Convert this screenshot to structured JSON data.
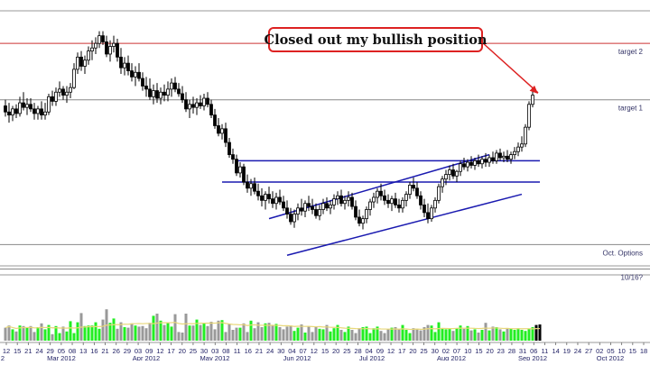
{
  "chart_data": {
    "type": "candlestick",
    "title": "",
    "price_range": [
      -1.2,
      15.0
    ],
    "volume_range": [
      0,
      100
    ],
    "grid": "none",
    "dates": [
      "2012-02-13",
      "2012-02-14",
      "2012-02-15",
      "2012-02-16",
      "2012-02-17",
      "2012-02-20",
      "2012-02-21",
      "2012-02-22",
      "2012-02-23",
      "2012-02-24",
      "2012-02-27",
      "2012-02-28",
      "2012-02-29",
      "2012-03-01",
      "2012-03-02",
      "2012-03-05",
      "2012-03-06",
      "2012-03-07",
      "2012-03-08",
      "2012-03-09",
      "2012-03-12",
      "2012-03-13",
      "2012-03-14",
      "2012-03-15",
      "2012-03-16",
      "2012-03-19",
      "2012-03-20",
      "2012-03-21",
      "2012-03-22",
      "2012-03-23",
      "2012-03-26",
      "2012-03-27",
      "2012-03-28",
      "2012-03-29",
      "2012-03-30",
      "2012-04-02",
      "2012-04-03",
      "2012-04-04",
      "2012-04-05",
      "2012-04-06",
      "2012-04-09",
      "2012-04-10",
      "2012-04-11",
      "2012-04-12",
      "2012-04-13",
      "2012-04-16",
      "2012-04-17",
      "2012-04-18",
      "2012-04-19",
      "2012-04-20",
      "2012-04-23",
      "2012-04-24",
      "2012-04-25",
      "2012-04-26",
      "2012-04-27",
      "2012-04-30",
      "2012-05-01",
      "2012-05-02",
      "2012-05-03",
      "2012-05-04",
      "2012-05-07",
      "2012-05-08",
      "2012-05-09",
      "2012-05-10",
      "2012-05-11",
      "2012-05-14",
      "2012-05-15",
      "2012-05-16",
      "2012-05-17",
      "2012-05-18",
      "2012-05-21",
      "2012-05-22",
      "2012-05-23",
      "2012-05-24",
      "2012-05-25",
      "2012-05-28",
      "2012-05-29",
      "2012-05-30",
      "2012-05-31",
      "2012-06-01",
      "2012-06-04",
      "2012-06-05",
      "2012-06-06",
      "2012-06-07",
      "2012-06-08",
      "2012-06-11",
      "2012-06-12",
      "2012-06-13",
      "2012-06-14",
      "2012-06-15",
      "2012-06-18",
      "2012-06-19",
      "2012-06-20",
      "2012-06-21",
      "2012-06-22",
      "2012-06-25",
      "2012-06-26",
      "2012-06-27",
      "2012-06-28",
      "2012-06-29",
      "2012-07-02",
      "2012-07-03",
      "2012-07-04",
      "2012-07-05",
      "2012-07-06",
      "2012-07-09",
      "2012-07-10",
      "2012-07-11",
      "2012-07-12",
      "2012-07-13",
      "2012-07-16",
      "2012-07-17",
      "2012-07-18",
      "2012-07-19",
      "2012-07-20",
      "2012-07-23",
      "2012-07-24",
      "2012-07-25",
      "2012-07-26",
      "2012-07-27",
      "2012-07-30",
      "2012-07-31",
      "2012-08-01",
      "2012-08-02",
      "2012-08-03",
      "2012-08-06",
      "2012-08-07",
      "2012-08-08",
      "2012-08-09",
      "2012-08-10",
      "2012-08-13",
      "2012-08-14",
      "2012-08-15",
      "2012-08-16",
      "2012-08-17",
      "2012-08-20",
      "2012-08-21",
      "2012-08-22",
      "2012-08-23",
      "2012-08-24",
      "2012-08-27",
      "2012-08-28",
      "2012-08-29",
      "2012-08-30",
      "2012-08-31",
      "2012-09-03",
      "2012-09-04",
      "2012-09-05",
      "2012-09-06"
    ],
    "ohlc": [
      [
        9.0,
        9.4,
        8.3,
        8.6
      ],
      [
        8.6,
        9.2,
        7.9,
        8.4
      ],
      [
        8.4,
        9.0,
        8.0,
        8.8
      ],
      [
        8.8,
        9.1,
        8.2,
        8.5
      ],
      [
        8.5,
        9.6,
        8.3,
        9.2
      ],
      [
        9.2,
        9.9,
        8.7,
        8.9
      ],
      [
        8.9,
        9.5,
        8.4,
        9.1
      ],
      [
        9.1,
        9.5,
        8.6,
        8.8
      ],
      [
        8.8,
        9.2,
        8.1,
        8.5
      ],
      [
        8.5,
        9.0,
        8.1,
        8.8
      ],
      [
        8.8,
        9.3,
        8.1,
        8.4
      ],
      [
        8.4,
        9.2,
        8.1,
        8.6
      ],
      [
        8.6,
        9.8,
        8.4,
        9.6
      ],
      [
        9.6,
        10.0,
        9.0,
        9.3
      ],
      [
        9.3,
        10.2,
        9.0,
        9.9
      ],
      [
        9.9,
        10.6,
        9.6,
        10.1
      ],
      [
        10.1,
        10.3,
        9.4,
        9.7
      ],
      [
        9.7,
        10.3,
        9.2,
        9.9
      ],
      [
        9.9,
        10.5,
        9.5,
        10.2
      ],
      [
        10.2,
        11.8,
        10.1,
        11.4
      ],
      [
        11.4,
        12.5,
        11.1,
        12.2
      ],
      [
        12.2,
        12.6,
        11.3,
        11.6
      ],
      [
        11.6,
        12.3,
        11.1,
        12.0
      ],
      [
        12.0,
        12.9,
        11.7,
        12.6
      ],
      [
        12.6,
        13.3,
        12.0,
        12.8
      ],
      [
        12.8,
        13.5,
        12.4,
        13.1
      ],
      [
        13.1,
        13.9,
        12.8,
        13.6
      ],
      [
        13.6,
        13.9,
        13.0,
        13.2
      ],
      [
        13.2,
        13.6,
        12.2,
        12.4
      ],
      [
        12.4,
        13.3,
        11.9,
        12.9
      ],
      [
        12.9,
        13.6,
        12.5,
        13.1
      ],
      [
        13.1,
        13.4,
        11.9,
        12.2
      ],
      [
        12.2,
        12.8,
        11.1,
        11.5
      ],
      [
        11.5,
        12.2,
        11.0,
        11.8
      ],
      [
        11.8,
        12.3,
        11.0,
        11.3
      ],
      [
        11.3,
        11.8,
        10.6,
        10.9
      ],
      [
        10.9,
        11.6,
        10.3,
        11.2
      ],
      [
        11.2,
        11.8,
        10.6,
        10.8
      ],
      [
        10.8,
        11.2,
        10.0,
        10.3
      ],
      [
        10.3,
        10.9,
        9.6,
        10.1
      ],
      [
        10.1,
        10.8,
        9.4,
        9.6
      ],
      [
        9.6,
        10.4,
        9.1,
        10.0
      ],
      [
        10.0,
        10.5,
        9.2,
        9.5
      ],
      [
        9.5,
        10.2,
        9.1,
        9.9
      ],
      [
        9.9,
        10.4,
        9.3,
        9.7
      ],
      [
        9.7,
        10.6,
        9.3,
        10.1
      ],
      [
        10.1,
        10.8,
        9.6,
        10.5
      ],
      [
        10.5,
        10.9,
        9.9,
        10.1
      ],
      [
        10.1,
        10.5,
        9.6,
        9.8
      ],
      [
        9.8,
        10.3,
        9.2,
        9.4
      ],
      [
        9.4,
        9.9,
        8.6,
        8.8
      ],
      [
        8.8,
        9.4,
        8.2,
        9.1
      ],
      [
        9.1,
        9.6,
        8.5,
        8.9
      ],
      [
        8.9,
        9.5,
        8.4,
        9.2
      ],
      [
        9.2,
        9.7,
        8.8,
        9.0
      ],
      [
        9.0,
        9.8,
        8.7,
        9.5
      ],
      [
        9.5,
        9.9,
        8.9,
        9.1
      ],
      [
        9.1,
        9.4,
        8.2,
        8.4
      ],
      [
        8.4,
        8.8,
        7.5,
        7.7
      ],
      [
        7.7,
        8.2,
        7.0,
        7.2
      ],
      [
        7.2,
        7.8,
        6.8,
        7.5
      ],
      [
        7.5,
        7.9,
        6.3,
        6.6
      ],
      [
        6.6,
        6.9,
        5.6,
        5.8
      ],
      [
        5.8,
        6.2,
        5.2,
        5.5
      ],
      [
        5.5,
        5.8,
        4.4,
        4.6
      ],
      [
        4.6,
        5.3,
        4.3,
        5.0
      ],
      [
        5.0,
        5.2,
        3.8,
        4.0
      ],
      [
        4.0,
        4.5,
        3.3,
        3.6
      ],
      [
        3.6,
        4.2,
        3.1,
        3.9
      ],
      [
        3.9,
        4.3,
        3.2,
        3.4
      ],
      [
        3.4,
        3.9,
        2.8,
        3.1
      ],
      [
        3.1,
        3.6,
        2.4,
        2.8
      ],
      [
        2.8,
        3.4,
        2.2,
        3.2
      ],
      [
        3.2,
        3.7,
        2.6,
        2.9
      ],
      [
        2.9,
        3.4,
        2.3,
        2.6
      ],
      [
        2.6,
        3.3,
        2.2,
        3.0
      ],
      [
        3.0,
        3.5,
        2.5,
        2.7
      ],
      [
        2.7,
        3.1,
        2.1,
        2.3
      ],
      [
        2.3,
        2.8,
        1.6,
        1.9
      ],
      [
        1.9,
        2.3,
        1.2,
        1.4
      ],
      [
        1.4,
        2.2,
        1.0,
        1.9
      ],
      [
        1.9,
        2.6,
        1.5,
        2.3
      ],
      [
        2.3,
        2.9,
        1.8,
        2.1
      ],
      [
        2.1,
        2.8,
        1.7,
        2.6
      ],
      [
        2.6,
        3.1,
        2.1,
        2.4
      ],
      [
        2.4,
        2.9,
        1.9,
        2.2
      ],
      [
        2.2,
        2.6,
        1.6,
        1.8
      ],
      [
        1.8,
        2.5,
        1.5,
        2.2
      ],
      [
        2.2,
        2.9,
        1.9,
        2.6
      ],
      [
        2.6,
        3.0,
        2.1,
        2.3
      ],
      [
        2.3,
        2.8,
        1.9,
        2.5
      ],
      [
        2.5,
        3.2,
        2.2,
        2.9
      ],
      [
        2.9,
        3.4,
        2.5,
        3.1
      ],
      [
        3.1,
        3.5,
        2.4,
        2.6
      ],
      [
        2.6,
        3.1,
        2.2,
        2.8
      ],
      [
        2.8,
        3.4,
        2.4,
        3.0
      ],
      [
        3.0,
        3.3,
        2.2,
        2.4
      ],
      [
        2.4,
        2.8,
        1.5,
        1.7
      ],
      [
        1.7,
        2.2,
        1.1,
        1.3
      ],
      [
        1.3,
        1.8,
        0.9,
        1.6
      ],
      [
        1.6,
        2.4,
        1.3,
        2.2
      ],
      [
        2.2,
        2.9,
        1.8,
        2.7
      ],
      [
        2.7,
        3.3,
        2.3,
        3.0
      ],
      [
        3.0,
        3.6,
        2.6,
        3.4
      ],
      [
        3.4,
        3.9,
        2.8,
        3.1
      ],
      [
        3.1,
        3.5,
        2.5,
        2.8
      ],
      [
        2.8,
        3.2,
        2.3,
        2.6
      ],
      [
        2.6,
        3.1,
        2.1,
        2.9
      ],
      [
        2.9,
        3.3,
        2.3,
        2.5
      ],
      [
        2.5,
        2.9,
        2.0,
        2.3
      ],
      [
        2.3,
        3.0,
        2.0,
        2.8
      ],
      [
        2.8,
        3.4,
        2.4,
        3.2
      ],
      [
        3.2,
        4.0,
        2.9,
        3.8
      ],
      [
        3.8,
        4.3,
        3.4,
        3.6
      ],
      [
        3.6,
        4.0,
        2.9,
        3.1
      ],
      [
        3.1,
        3.4,
        2.2,
        2.5
      ],
      [
        2.5,
        2.9,
        1.7,
        2.0
      ],
      [
        2.0,
        2.6,
        1.3,
        1.6
      ],
      [
        1.6,
        2.5,
        1.4,
        2.3
      ],
      [
        2.3,
        3.0,
        2.0,
        2.8
      ],
      [
        2.8,
        3.9,
        2.6,
        3.7
      ],
      [
        3.7,
        4.4,
        3.3,
        4.2
      ],
      [
        4.2,
        4.8,
        3.8,
        4.5
      ],
      [
        4.5,
        5.1,
        4.1,
        4.8
      ],
      [
        4.8,
        5.2,
        4.2,
        4.4
      ],
      [
        4.4,
        4.8,
        4.0,
        4.7
      ],
      [
        4.7,
        5.4,
        4.4,
        5.2
      ],
      [
        5.2,
        5.6,
        4.8,
        5.0
      ],
      [
        5.0,
        5.5,
        4.7,
        5.3
      ],
      [
        5.3,
        5.7,
        4.9,
        5.1
      ],
      [
        5.1,
        5.6,
        4.8,
        5.4
      ],
      [
        5.4,
        5.8,
        5.0,
        5.2
      ],
      [
        5.2,
        5.7,
        4.9,
        5.5
      ],
      [
        5.5,
        5.9,
        5.0,
        5.3
      ],
      [
        5.3,
        5.8,
        5.0,
        5.6
      ],
      [
        5.6,
        6.0,
        5.2,
        5.4
      ],
      [
        5.4,
        6.1,
        5.2,
        5.9
      ],
      [
        5.9,
        6.2,
        5.4,
        5.6
      ],
      [
        5.6,
        6.0,
        5.3,
        5.7
      ],
      [
        5.7,
        6.1,
        5.3,
        5.5
      ],
      [
        5.5,
        6.0,
        5.2,
        5.8
      ],
      [
        5.8,
        6.3,
        5.5,
        6.0
      ],
      [
        6.0,
        6.6,
        5.7,
        6.3
      ],
      [
        6.3,
        7.0,
        6.0,
        6.5
      ],
      [
        6.5,
        7.8,
        6.3,
        7.6
      ],
      [
        7.6,
        9.3,
        7.4,
        9.1
      ],
      [
        9.1,
        10.0,
        8.9,
        9.7
      ]
    ],
    "volume": [
      24,
      28,
      21,
      17,
      28,
      27,
      25,
      27,
      16,
      25,
      32,
      21,
      29,
      12,
      27,
      14,
      26,
      17,
      36,
      14,
      34,
      51,
      27,
      28,
      28,
      34,
      22,
      39,
      58,
      33,
      41,
      22,
      34,
      25,
      24,
      32,
      28,
      26,
      27,
      23,
      33,
      46,
      50,
      37,
      29,
      34,
      26,
      49,
      16,
      15,
      50,
      28,
      28,
      39,
      29,
      33,
      27,
      35,
      21,
      37,
      38,
      16,
      31,
      20,
      24,
      24,
      32,
      16,
      37,
      23,
      34,
      25,
      32,
      33,
      29,
      31,
      25,
      21,
      26,
      28,
      18,
      24,
      30,
      15,
      26,
      16,
      26,
      22,
      21,
      29,
      17,
      23,
      29,
      20,
      16,
      26,
      20,
      14,
      23,
      25,
      26,
      14,
      23,
      26,
      18,
      14,
      21,
      24,
      25,
      21,
      29,
      20,
      14,
      23,
      22,
      19,
      25,
      29,
      28,
      16,
      34,
      22,
      21,
      22,
      18,
      23,
      28,
      22,
      27,
      19,
      21,
      15,
      20,
      33,
      19,
      26,
      25,
      21,
      17,
      23,
      22,
      20,
      23,
      20,
      18,
      22,
      25,
      29,
      30
    ],
    "volume_up_color": "#22ee22",
    "volume_down_color": "#999999",
    "volume_avg_color": "#e8d87a",
    "horizontal_levels": [
      {
        "label": "target 2",
        "value": 13.1,
        "color": "#cc3333"
      },
      {
        "label": "target 1",
        "value": 9.4,
        "color": "#888888"
      },
      {
        "label": "Oct. Options",
        "value": -0.1,
        "color": "#888888"
      },
      {
        "label": "10/16?",
        "value": -1.7,
        "color": "#888888"
      }
    ],
    "support_lines": [
      {
        "from": [
          "2012-05-11",
          5.4
        ],
        "to": [
          "2012-09-06",
          5.4
        ],
        "color": "#1a1ab0"
      },
      {
        "from": [
          "2012-05-07",
          4.0
        ],
        "to": [
          "2012-09-06",
          4.0
        ],
        "color": "#1a1ab0"
      },
      {
        "from": [
          "2012-05-24",
          1.6
        ],
        "to": [
          "2012-08-17",
          5.8
        ],
        "color": "#1a1ab0"
      },
      {
        "from": [
          "2012-05-31",
          -0.8
        ],
        "to": [
          "2012-08-30",
          3.2
        ],
        "color": "#1a1ab0"
      }
    ],
    "x_tick_days": [
      "12",
      "15",
      "21",
      "24",
      "29",
      "05",
      "08",
      "13",
      "16",
      "21",
      "26",
      "29",
      "03",
      "09",
      "12",
      "17",
      "20",
      "25",
      "30",
      "03",
      "08",
      "11",
      "16",
      "21",
      "24",
      "30",
      "04",
      "07",
      "12",
      "15",
      "20",
      "25",
      "28",
      "04",
      "09",
      "12",
      "17",
      "20",
      "25",
      "30",
      "02",
      "07",
      "10",
      "15",
      "20",
      "23",
      "28",
      "31",
      "06",
      "11",
      "14",
      "19",
      "24",
      "27",
      "02",
      "05",
      "10",
      "15",
      "18"
    ],
    "x_month_labels": [
      "2",
      "Mar 2012",
      "Apr 2012",
      "May 2012",
      "Jun 2012",
      "Jul 2012",
      "Aug 2012",
      "Sep 2012",
      "Oct 2012"
    ],
    "annotation": {
      "text": "Closed out my bullish position",
      "target_date": "2012-09-06",
      "target_value": 9.8,
      "border_color": "#dd2222",
      "arrow_color": "#dd2222"
    }
  }
}
